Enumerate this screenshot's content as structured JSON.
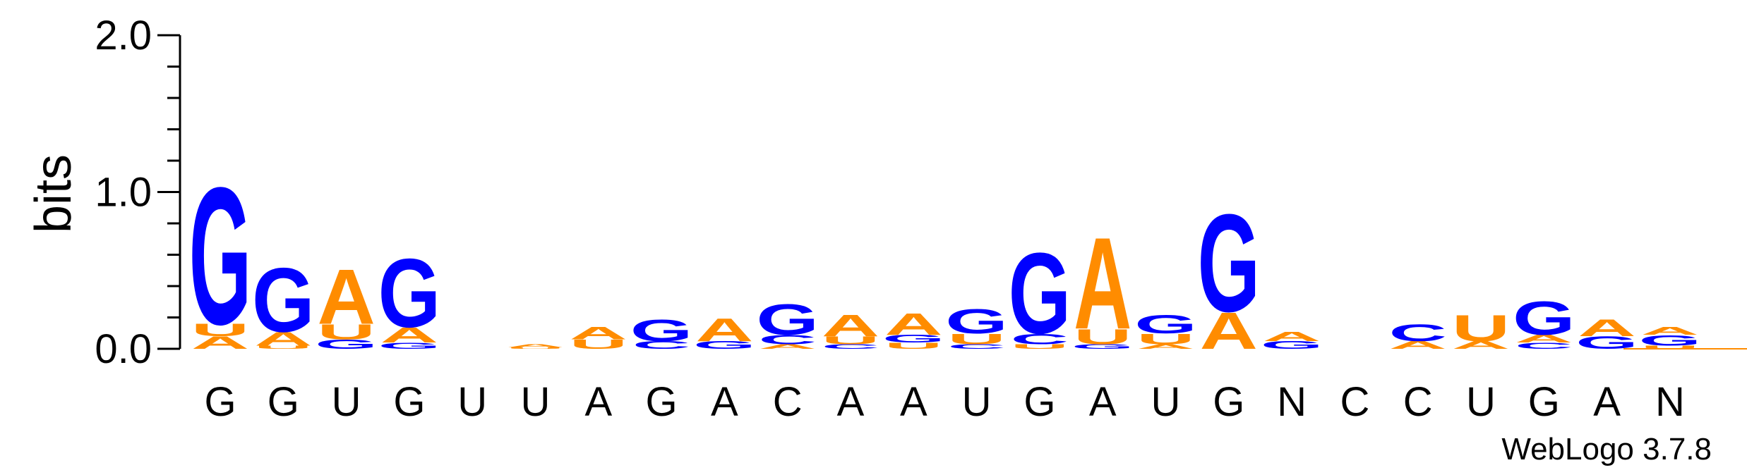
{
  "chart_data": {
    "type": "sequence-logo",
    "ylabel": "bits",
    "ylim": [
      0,
      2.0
    ],
    "yticks": [
      "0.0",
      "1.0",
      "2.0"
    ],
    "alphabet_colors": {
      "A": "#ff8c00",
      "U": "#ff8c00",
      "G": "#0000ff",
      "C": "#0000ff"
    },
    "credit": "WebLogo 3.7.8",
    "positions": [
      {
        "label": "G",
        "stack": [
          {
            "letter": "A",
            "bits": 0.08
          },
          {
            "letter": "U",
            "bits": 0.08
          },
          {
            "letter": "G",
            "bits": 0.9
          }
        ]
      },
      {
        "label": "G",
        "stack": [
          {
            "letter": "U",
            "bits": 0.02
          },
          {
            "letter": "A",
            "bits": 0.09
          },
          {
            "letter": "G",
            "bits": 0.42
          }
        ]
      },
      {
        "label": "U",
        "stack": [
          {
            "letter": "G",
            "bits": 0.06
          },
          {
            "letter": "U",
            "bits": 0.1
          },
          {
            "letter": "A",
            "bits": 0.36
          }
        ]
      },
      {
        "label": "G",
        "stack": [
          {
            "letter": "G",
            "bits": 0.04
          },
          {
            "letter": "A",
            "bits": 0.1
          },
          {
            "letter": "G",
            "bits": 0.45
          }
        ]
      },
      {
        "label": "U",
        "stack": []
      },
      {
        "label": "U",
        "stack": [
          {
            "letter": "U",
            "bits": 0.01
          },
          {
            "letter": "A",
            "bits": 0.02
          }
        ]
      },
      {
        "label": "A",
        "stack": [
          {
            "letter": "U",
            "bits": 0.06
          },
          {
            "letter": "A",
            "bits": 0.08
          }
        ]
      },
      {
        "label": "G",
        "stack": [
          {
            "letter": "C",
            "bits": 0.05
          },
          {
            "letter": "G",
            "bits": 0.14
          }
        ]
      },
      {
        "label": "A",
        "stack": [
          {
            "letter": "G",
            "bits": 0.05
          },
          {
            "letter": "A",
            "bits": 0.15
          }
        ]
      },
      {
        "label": "C",
        "stack": [
          {
            "letter": "A",
            "bits": 0.03
          },
          {
            "letter": "C",
            "bits": 0.06
          },
          {
            "letter": "G",
            "bits": 0.2
          }
        ]
      },
      {
        "label": "A",
        "stack": [
          {
            "letter": "C",
            "bits": 0.03
          },
          {
            "letter": "U",
            "bits": 0.05
          },
          {
            "letter": "A",
            "bits": 0.14
          }
        ]
      },
      {
        "label": "A",
        "stack": [
          {
            "letter": "U",
            "bits": 0.04
          },
          {
            "letter": "G",
            "bits": 0.05
          },
          {
            "letter": "A",
            "bits": 0.14
          }
        ]
      },
      {
        "label": "U",
        "stack": [
          {
            "letter": "C",
            "bits": 0.03
          },
          {
            "letter": "U",
            "bits": 0.07
          },
          {
            "letter": "G",
            "bits": 0.16
          }
        ]
      },
      {
        "label": "G",
        "stack": [
          {
            "letter": "U",
            "bits": 0.03
          },
          {
            "letter": "C",
            "bits": 0.07
          },
          {
            "letter": "G",
            "bits": 0.53
          }
        ]
      },
      {
        "label": "A",
        "stack": [
          {
            "letter": "G",
            "bits": 0.03
          },
          {
            "letter": "U",
            "bits": 0.1
          },
          {
            "letter": "A",
            "bits": 0.6
          }
        ]
      },
      {
        "label": "U",
        "stack": [
          {
            "letter": "A",
            "bits": 0.03
          },
          {
            "letter": "U",
            "bits": 0.07
          },
          {
            "letter": "G",
            "bits": 0.12
          }
        ]
      },
      {
        "label": "G",
        "stack": [
          {
            "letter": "A",
            "bits": 0.24
          },
          {
            "letter": "G",
            "bits": 0.64
          }
        ]
      },
      {
        "label": "N",
        "stack": [
          {
            "letter": "G",
            "bits": 0.05
          },
          {
            "letter": "A",
            "bits": 0.06
          }
        ]
      },
      {
        "label": "C",
        "stack": []
      },
      {
        "label": "C",
        "stack": [
          {
            "letter": "A",
            "bits": 0.05
          },
          {
            "letter": "C",
            "bits": 0.11
          }
        ]
      },
      {
        "label": "U",
        "stack": [
          {
            "letter": "A",
            "bits": 0.05
          },
          {
            "letter": "U",
            "bits": 0.17
          }
        ]
      },
      {
        "label": "G",
        "stack": [
          {
            "letter": "C",
            "bits": 0.04
          },
          {
            "letter": "A",
            "bits": 0.05
          },
          {
            "letter": "G",
            "bits": 0.22
          }
        ]
      },
      {
        "label": "A",
        "stack": [
          {
            "letter": "G",
            "bits": 0.08
          },
          {
            "letter": "A",
            "bits": 0.11
          }
        ]
      },
      {
        "label": "N",
        "stack": [
          {
            "letter": "U",
            "bits": 0.02
          },
          {
            "letter": "G",
            "bits": 0.07
          },
          {
            "letter": "A",
            "bits": 0.05
          }
        ]
      }
    ]
  }
}
